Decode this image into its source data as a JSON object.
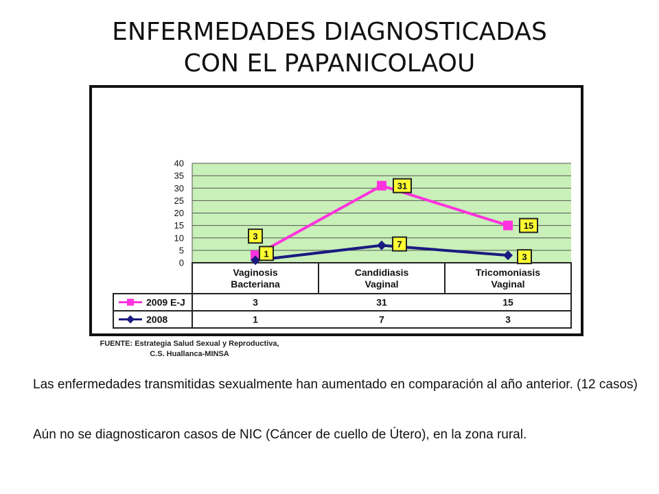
{
  "slide": {
    "title_line1": "ENFERMEDADES DIAGNOSTICADAS",
    "title_line2": "CON EL PAPANICOLAOU"
  },
  "colors": {
    "plot_bg": "#c8f0b8",
    "series_2009": "#ff33dd",
    "series_2008": "#1a1a80",
    "label_bg": "#ffff33",
    "grid": "#555555"
  },
  "chart_data": {
    "type": "line",
    "categories": [
      [
        "Vaginosis",
        "Bacteriana"
      ],
      [
        "Candidiasis",
        "Vaginal"
      ],
      [
        "Tricomoniasis",
        "Vaginal"
      ]
    ],
    "series": [
      {
        "name": "2009 E-J",
        "values": [
          3,
          31,
          15
        ],
        "color": "#ff33dd",
        "marker": "square"
      },
      {
        "name": "2008",
        "values": [
          1,
          7,
          3
        ],
        "color": "#1a1a80",
        "marker": "diamond"
      }
    ],
    "ylim": [
      0,
      40
    ],
    "yticks": [
      "0",
      "5",
      "10",
      "15",
      "20",
      "25",
      "30",
      "35",
      "40"
    ],
    "grid": true,
    "data_table": true,
    "data_labels": true
  },
  "source": {
    "line1": "FUENTE: Estrategia  Salud Sexual y Reproductiva,",
    "line2": "C.S. Huallanca-MINSA"
  },
  "notes": [
    "Las enfermedades transmitidas sexualmente han aumentado en comparación al año anterior. (12 casos)",
    "Aún no se diagnosticaron casos de NIC (Cáncer de cuello de Útero), en la zona rural."
  ]
}
